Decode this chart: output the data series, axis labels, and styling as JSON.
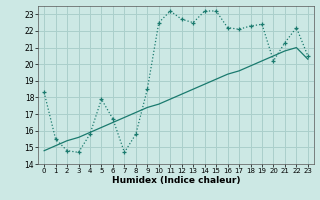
{
  "xlabel": "Humidex (Indice chaleur)",
  "bg_color": "#cce8e4",
  "grid_color": "#aacfcb",
  "line_color": "#1a7a6e",
  "xlim": [
    -0.5,
    23.5
  ],
  "ylim": [
    14,
    23.5
  ],
  "yticks": [
    14,
    15,
    16,
    17,
    18,
    19,
    20,
    21,
    22,
    23
  ],
  "xticks": [
    0,
    1,
    2,
    3,
    4,
    5,
    6,
    7,
    8,
    9,
    10,
    11,
    12,
    13,
    14,
    15,
    16,
    17,
    18,
    19,
    20,
    21,
    22,
    23
  ],
  "line1_x": [
    0,
    1,
    2,
    3,
    4,
    5,
    6,
    7,
    8,
    9,
    10,
    11,
    12,
    13,
    14,
    15,
    16,
    17,
    18,
    19,
    20,
    21,
    22,
    23
  ],
  "line1_y": [
    18.3,
    15.5,
    14.8,
    14.7,
    15.8,
    17.9,
    16.7,
    14.7,
    15.8,
    18.5,
    22.5,
    23.2,
    22.7,
    22.5,
    23.2,
    23.2,
    22.2,
    22.1,
    22.3,
    22.4,
    20.2,
    21.3,
    22.2,
    20.5
  ],
  "line2_x": [
    0,
    1,
    2,
    3,
    4,
    5,
    6,
    7,
    8,
    9,
    10,
    11,
    12,
    13,
    14,
    15,
    16,
    17,
    18,
    19,
    20,
    21,
    22,
    23
  ],
  "line2_y": [
    14.8,
    15.1,
    15.4,
    15.6,
    15.9,
    16.2,
    16.5,
    16.8,
    17.1,
    17.4,
    17.6,
    17.9,
    18.2,
    18.5,
    18.8,
    19.1,
    19.4,
    19.6,
    19.9,
    20.2,
    20.5,
    20.8,
    21.0,
    20.3
  ]
}
